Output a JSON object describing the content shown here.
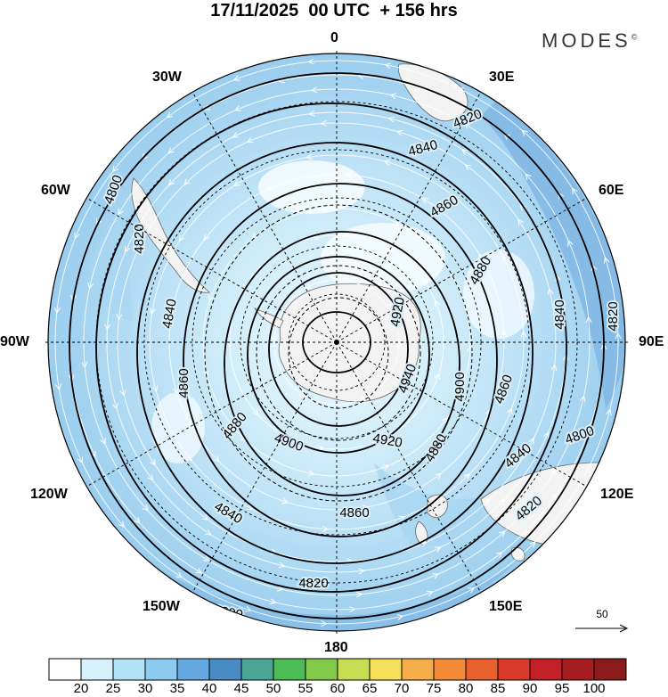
{
  "title": "17/11/2025  00 UTC  + 156 hrs",
  "logo": {
    "text": "MODES",
    "mark": "©"
  },
  "longitude_labels": {
    "top": "0",
    "bottom": "180",
    "left": "90W",
    "right": "90E",
    "n30w": "30W",
    "n30e": "30E",
    "n60w": "60W",
    "n60e": "60E",
    "s120w": "120W",
    "s120e": "120E",
    "s150w": "150W",
    "s150e": "150E"
  },
  "reference_vector": {
    "label": "50",
    "icon": "arrow-right-icon"
  },
  "contours": {
    "levels": [
      "4800",
      "4820",
      "4840",
      "4860",
      "4880",
      "4900",
      "4920",
      "4940"
    ],
    "labels": [
      {
        "text": "4820",
        "angle": 0,
        "level": 4820
      },
      {
        "text": "4840",
        "angle": 0,
        "level": 4840
      },
      {
        "text": "4860",
        "angle": 0,
        "level": 4860
      },
      {
        "text": "4880",
        "angle": 0,
        "level": 4880
      },
      {
        "text": "4920",
        "angle": 0,
        "level": 4920
      },
      {
        "text": "4800",
        "angle": 0,
        "level": 4800
      },
      {
        "text": "4820",
        "angle": 0,
        "level": 4820
      },
      {
        "text": "4840",
        "angle": 0,
        "level": 4840
      },
      {
        "text": "4860",
        "angle": 0,
        "level": 4860
      },
      {
        "text": "4880",
        "angle": 0,
        "level": 4880
      },
      {
        "text": "4900",
        "angle": 0,
        "level": 4900
      },
      {
        "text": "4940",
        "angle": 0,
        "level": 4940
      },
      {
        "text": "4920",
        "angle": 0,
        "level": 4920
      },
      {
        "text": "4900",
        "angle": 0,
        "level": 4900
      },
      {
        "text": "4880",
        "angle": 0,
        "level": 4880
      },
      {
        "text": "4860",
        "angle": 0,
        "level": 4860
      },
      {
        "text": "4840",
        "angle": 0,
        "level": 4840
      },
      {
        "text": "4820",
        "angle": 0,
        "level": 4820
      },
      {
        "text": "4800",
        "angle": 0,
        "level": 4800
      },
      {
        "text": "4840",
        "angle": 0,
        "level": 4840
      },
      {
        "text": "4820",
        "angle": 0,
        "level": 4820
      },
      {
        "text": "4860",
        "angle": 0,
        "level": 4860
      },
      {
        "text": "4840",
        "angle": 0,
        "level": 4840
      },
      {
        "text": "4820",
        "angle": 0,
        "level": 4820
      },
      {
        "text": "4800",
        "angle": 0,
        "level": 4800
      }
    ]
  },
  "colorbar": {
    "labels": [
      "20",
      "25",
      "30",
      "35",
      "40",
      "45",
      "50",
      "55",
      "60",
      "65",
      "70",
      "75",
      "80",
      "85",
      "90",
      "95",
      "100"
    ],
    "colors": [
      "#ffffff",
      "#d6f1fc",
      "#b3e2f7",
      "#8ccaf0",
      "#64a9e0",
      "#4a8cc6",
      "#4aa592",
      "#4dbb56",
      "#82c94a",
      "#c6dd52",
      "#f6df5b",
      "#f5ae4a",
      "#f28a38",
      "#e8602e",
      "#d93a2a",
      "#c21f26",
      "#a51c21",
      "#8b1a1a"
    ]
  },
  "colors": {
    "ocean_light": "#d8f0fb",
    "ocean_mid": "#b1dcf4",
    "ocean_dark": "#8fc3e9",
    "ocean_deep": "#6fa8dc",
    "land": "#f2f2f2",
    "contour": "#000000",
    "streamline": "#ffffff"
  }
}
